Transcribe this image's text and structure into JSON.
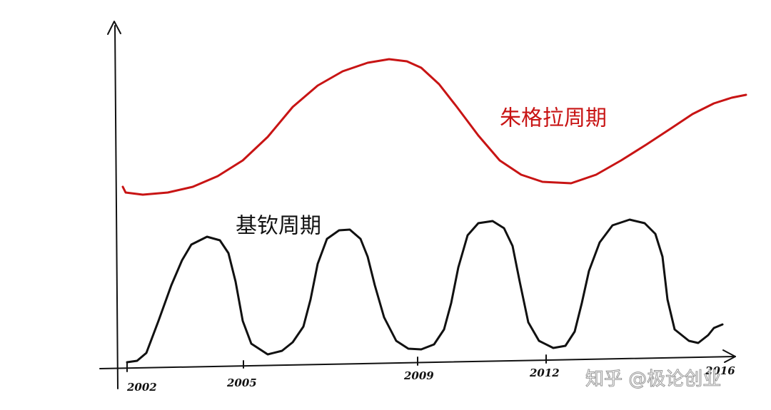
{
  "labels": {
    "juglar": "朱格拉周期",
    "kitchin": "基钦周期"
  },
  "axis_labels": [
    "2002",
    "2005",
    "2009",
    "2012",
    "2016"
  ],
  "watermark": "知乎 @极论创业"
}
